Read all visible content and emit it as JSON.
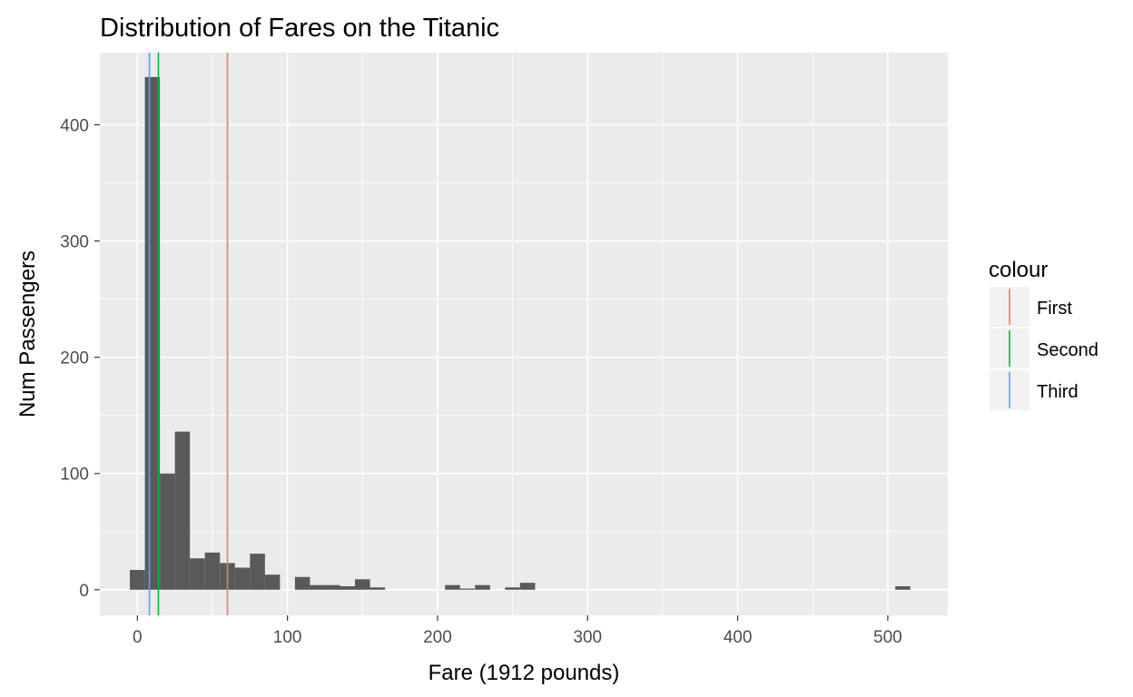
{
  "chart_data": {
    "type": "bar",
    "title": "Distribution of Fares on the Titanic",
    "xlabel": "Fare (1912 pounds)",
    "ylabel": "Num Passengers",
    "xlim": [
      -25,
      540
    ],
    "ylim": [
      -22,
      462
    ],
    "grid": true,
    "background": "#ebebeb",
    "bar_color": "#595959",
    "grid_color": "#ffffff",
    "bin_width": 10,
    "x_ticks": [
      0,
      100,
      200,
      300,
      400,
      500
    ],
    "y_ticks": [
      0,
      100,
      200,
      300,
      400
    ],
    "bins": [
      {
        "start": -5,
        "end": 5,
        "count": 17
      },
      {
        "start": 5,
        "end": 15,
        "count": 441
      },
      {
        "start": 15,
        "end": 25,
        "count": 100
      },
      {
        "start": 25,
        "end": 35,
        "count": 136
      },
      {
        "start": 35,
        "end": 45,
        "count": 27
      },
      {
        "start": 45,
        "end": 55,
        "count": 32
      },
      {
        "start": 55,
        "end": 65,
        "count": 23
      },
      {
        "start": 65,
        "end": 75,
        "count": 19
      },
      {
        "start": 75,
        "end": 85,
        "count": 31
      },
      {
        "start": 85,
        "end": 95,
        "count": 13
      },
      {
        "start": 105,
        "end": 115,
        "count": 11
      },
      {
        "start": 115,
        "end": 125,
        "count": 4
      },
      {
        "start": 125,
        "end": 135,
        "count": 4
      },
      {
        "start": 135,
        "end": 145,
        "count": 3
      },
      {
        "start": 145,
        "end": 155,
        "count": 9
      },
      {
        "start": 155,
        "end": 165,
        "count": 2
      },
      {
        "start": 205,
        "end": 215,
        "count": 4
      },
      {
        "start": 215,
        "end": 225,
        "count": 1
      },
      {
        "start": 225,
        "end": 235,
        "count": 4
      },
      {
        "start": 245,
        "end": 255,
        "count": 2
      },
      {
        "start": 255,
        "end": 265,
        "count": 6
      },
      {
        "start": 505,
        "end": 515,
        "count": 3
      }
    ],
    "reference_lines": [
      {
        "name": "First",
        "x": 60,
        "color": "#f8766d"
      },
      {
        "name": "Second",
        "x": 14,
        "color": "#00ba38"
      },
      {
        "name": "Third",
        "x": 8,
        "color": "#619cff"
      }
    ],
    "legend": {
      "title": "colour",
      "position": "right",
      "entries": [
        {
          "label": "First",
          "color": "#f8766d"
        },
        {
          "label": "Second",
          "color": "#00ba38"
        },
        {
          "label": "Third",
          "color": "#619cff"
        }
      ]
    }
  }
}
